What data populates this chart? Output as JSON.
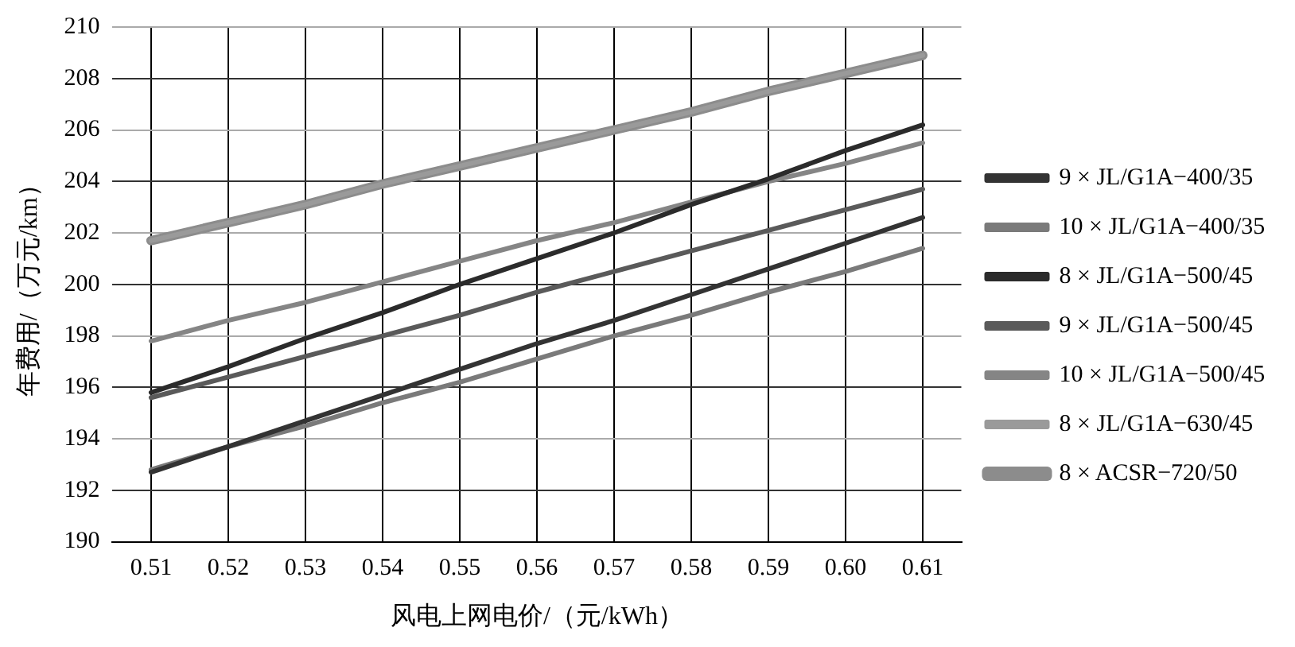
{
  "chart_data": {
    "type": "line",
    "xlabel": "风电上网电价/（元/kWh）",
    "ylabel": "年费用/（万元/km）",
    "categories": [
      "0.51",
      "0.52",
      "0.53",
      "0.54",
      "0.55",
      "0.56",
      "0.57",
      "0.58",
      "0.59",
      "0.60",
      "0.61"
    ],
    "ylim": [
      190,
      210
    ],
    "yticks": [
      190,
      192,
      194,
      196,
      198,
      200,
      202,
      204,
      206,
      208,
      210
    ],
    "grid": true,
    "legend": "right",
    "marker": "none",
    "line_style": "solid",
    "series": [
      {
        "name": "9 × JL/G1A−400/35",
        "color": "#333333",
        "values": [
          192.7,
          193.7,
          194.7,
          195.7,
          196.7,
          197.7,
          198.6,
          199.6,
          200.6,
          201.6,
          202.6
        ]
      },
      {
        "name": "10 × JL/G1A−400/35",
        "color": "#7a7a7a",
        "values": [
          192.8,
          193.7,
          194.5,
          195.4,
          196.2,
          197.1,
          198.0,
          198.8,
          199.7,
          200.5,
          201.4
        ]
      },
      {
        "name": "8 × JL/G1A−500/45",
        "color": "#2b2b2b",
        "values": [
          195.8,
          196.8,
          197.9,
          198.9,
          200.0,
          201.0,
          202.0,
          203.1,
          204.1,
          205.2,
          206.2
        ]
      },
      {
        "name": "9 × JL/G1A−500/45",
        "color": "#5a5a5a",
        "values": [
          195.6,
          196.4,
          197.2,
          198.0,
          198.8,
          199.7,
          200.5,
          201.3,
          202.1,
          202.9,
          203.7
        ]
      },
      {
        "name": "10 × JL/G1A−500/45",
        "color": "#858585",
        "values": [
          197.8,
          198.6,
          199.3,
          200.1,
          200.9,
          201.7,
          202.4,
          203.2,
          204.0,
          204.7,
          205.5
        ]
      },
      {
        "name": "8 × JL/G1A−630/45",
        "color": "#9a9a9a",
        "values": [
          201.7,
          202.4,
          203.1,
          203.9,
          204.6,
          205.3,
          206.0,
          206.7,
          207.5,
          208.2,
          208.9
        ]
      },
      {
        "name": "8 × ACSR−720/50",
        "color": "#8c8c8c",
        "values": [
          201.7,
          202.4,
          203.1,
          203.9,
          204.6,
          205.3,
          206.0,
          206.7,
          207.5,
          208.2,
          208.9
        ]
      }
    ]
  }
}
